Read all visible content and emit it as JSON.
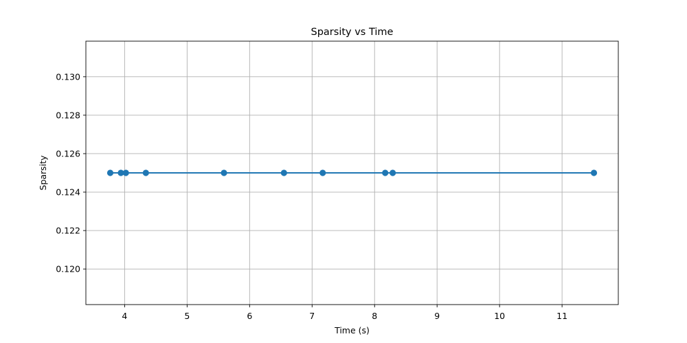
{
  "chart_data": {
    "type": "line",
    "title": "Sparsity vs Time",
    "xlabel": "Time (s)",
    "ylabel": "Sparsity",
    "xlim": [
      3.38,
      11.9
    ],
    "ylim": [
      0.11815,
      0.13185
    ],
    "xticks": [
      4,
      5,
      6,
      7,
      8,
      9,
      10,
      11
    ],
    "yticks": [
      0.12,
      0.122,
      0.124,
      0.126,
      0.128,
      0.13
    ],
    "ytick_labels": [
      "0.120",
      "0.122",
      "0.124",
      "0.126",
      "0.128",
      "0.130"
    ],
    "grid": true,
    "series": [
      {
        "color": "#1f77b4",
        "marker": "circle",
        "points": [
          {
            "x": 3.77,
            "y": 0.125
          },
          {
            "x": 3.94,
            "y": 0.125
          },
          {
            "x": 4.02,
            "y": 0.125
          },
          {
            "x": 4.34,
            "y": 0.125
          },
          {
            "x": 5.59,
            "y": 0.125
          },
          {
            "x": 6.55,
            "y": 0.125
          },
          {
            "x": 7.17,
            "y": 0.125
          },
          {
            "x": 8.17,
            "y": 0.125
          },
          {
            "x": 8.29,
            "y": 0.125
          },
          {
            "x": 11.51,
            "y": 0.125
          }
        ]
      }
    ]
  }
}
